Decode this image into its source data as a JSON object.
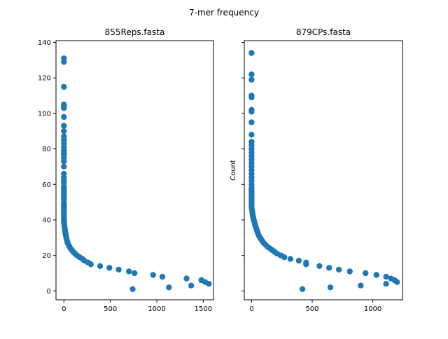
{
  "figure": {
    "suptitle": "7-mer frequency"
  },
  "chart_data": [
    {
      "type": "scatter",
      "title": "855Reps.fasta",
      "xlabel": "",
      "ylabel": "",
      "xlim": [
        -85,
        1610
      ],
      "ylim": [
        -5,
        141
      ],
      "xticks": [
        0,
        500,
        1000,
        1500
      ],
      "yticks": [
        0,
        20,
        40,
        60,
        80,
        100,
        120,
        140
      ],
      "grid": false,
      "marker_color": "#1f77b4",
      "points": [
        [
          0,
          131
        ],
        [
          0,
          129
        ],
        [
          0,
          115
        ],
        [
          0,
          105
        ],
        [
          0,
          104
        ],
        [
          0,
          103
        ],
        [
          0,
          98
        ],
        [
          0,
          93
        ],
        [
          0,
          90
        ],
        [
          0,
          87
        ],
        [
          0,
          85
        ],
        [
          0,
          83
        ],
        [
          0,
          81
        ],
        [
          0,
          79
        ],
        [
          0,
          78
        ],
        [
          0,
          77
        ],
        [
          0,
          75
        ],
        [
          0,
          73
        ],
        [
          0,
          70
        ],
        [
          0,
          66
        ],
        [
          0,
          64
        ],
        [
          0,
          62
        ],
        [
          0,
          61
        ],
        [
          0,
          59
        ],
        [
          0,
          58
        ],
        [
          0,
          57
        ],
        [
          0,
          56
        ],
        [
          0,
          55
        ],
        [
          0,
          54
        ],
        [
          0,
          53
        ],
        [
          0,
          52
        ],
        [
          0,
          50
        ],
        [
          0,
          49
        ],
        [
          0,
          48
        ],
        [
          0,
          47
        ],
        [
          0,
          46
        ],
        [
          0,
          45
        ],
        [
          0,
          44
        ],
        [
          0,
          43
        ],
        [
          0,
          42
        ],
        [
          0,
          41
        ],
        [
          0,
          40
        ],
        [
          0,
          39
        ],
        [
          3,
          38
        ],
        [
          5,
          37
        ],
        [
          7,
          36
        ],
        [
          9,
          35
        ],
        [
          12,
          34
        ],
        [
          15,
          33
        ],
        [
          18,
          32
        ],
        [
          22,
          31
        ],
        [
          26,
          30
        ],
        [
          30,
          29
        ],
        [
          35,
          28
        ],
        [
          40,
          27
        ],
        [
          50,
          26
        ],
        [
          60,
          25
        ],
        [
          70,
          24
        ],
        [
          85,
          23
        ],
        [
          100,
          22
        ],
        [
          120,
          21
        ],
        [
          140,
          20
        ],
        [
          170,
          19
        ],
        [
          200,
          18
        ],
        [
          220,
          17
        ],
        [
          260,
          16
        ],
        [
          290,
          15
        ],
        [
          390,
          14
        ],
        [
          490,
          13
        ],
        [
          590,
          12
        ],
        [
          700,
          11
        ],
        [
          760,
          10
        ],
        [
          960,
          9
        ],
        [
          1060,
          8
        ],
        [
          1320,
          7
        ],
        [
          1480,
          6
        ],
        [
          1520,
          5
        ],
        [
          1560,
          4
        ],
        [
          1370,
          3
        ],
        [
          1130,
          2
        ],
        [
          740,
          1
        ]
      ]
    },
    {
      "type": "scatter",
      "title": "879CPs.fasta",
      "xlabel": "",
      "ylabel": "Count",
      "xlim": [
        -60,
        1245
      ],
      "ylim": [
        -5,
        141
      ],
      "xticks": [
        0,
        500,
        1000
      ],
      "yticks": [
        0,
        20,
        40,
        60,
        80,
        100,
        120,
        140
      ],
      "grid": false,
      "marker_color": "#1f77b4",
      "points": [
        [
          0,
          134
        ],
        [
          0,
          122
        ],
        [
          0,
          119
        ],
        [
          0,
          110
        ],
        [
          0,
          109
        ],
        [
          0,
          102
        ],
        [
          0,
          101
        ],
        [
          0,
          95
        ],
        [
          0,
          88
        ],
        [
          0,
          84
        ],
        [
          0,
          82
        ],
        [
          0,
          80
        ],
        [
          0,
          78
        ],
        [
          0,
          76
        ],
        [
          0,
          74
        ],
        [
          0,
          72
        ],
        [
          0,
          70
        ],
        [
          0,
          68
        ],
        [
          0,
          66
        ],
        [
          0,
          64
        ],
        [
          0,
          62
        ],
        [
          0,
          60
        ],
        [
          0,
          58
        ],
        [
          0,
          57
        ],
        [
          0,
          56
        ],
        [
          0,
          55
        ],
        [
          0,
          54
        ],
        [
          0,
          53
        ],
        [
          0,
          52
        ],
        [
          0,
          51
        ],
        [
          0,
          50
        ],
        [
          0,
          49
        ],
        [
          0,
          48
        ],
        [
          0,
          47
        ],
        [
          3,
          46
        ],
        [
          5,
          45
        ],
        [
          7,
          44
        ],
        [
          9,
          43
        ],
        [
          12,
          42
        ],
        [
          15,
          41
        ],
        [
          18,
          40
        ],
        [
          22,
          39
        ],
        [
          26,
          38
        ],
        [
          30,
          37
        ],
        [
          35,
          36
        ],
        [
          40,
          35
        ],
        [
          45,
          34
        ],
        [
          50,
          33
        ],
        [
          55,
          32
        ],
        [
          62,
          31
        ],
        [
          70,
          30
        ],
        [
          80,
          29
        ],
        [
          90,
          28
        ],
        [
          100,
          27
        ],
        [
          115,
          26
        ],
        [
          130,
          25
        ],
        [
          150,
          24
        ],
        [
          170,
          23
        ],
        [
          190,
          22
        ],
        [
          210,
          21
        ],
        [
          240,
          20
        ],
        [
          270,
          19
        ],
        [
          320,
          18
        ],
        [
          390,
          17
        ],
        [
          450,
          16
        ],
        [
          450,
          15
        ],
        [
          560,
          14
        ],
        [
          640,
          13
        ],
        [
          720,
          12
        ],
        [
          810,
          11
        ],
        [
          940,
          10
        ],
        [
          1030,
          9
        ],
        [
          1110,
          8
        ],
        [
          1150,
          7
        ],
        [
          1180,
          6
        ],
        [
          1200,
          5
        ],
        [
          1110,
          4
        ],
        [
          900,
          3
        ],
        [
          650,
          2
        ],
        [
          420,
          1
        ]
      ]
    }
  ]
}
